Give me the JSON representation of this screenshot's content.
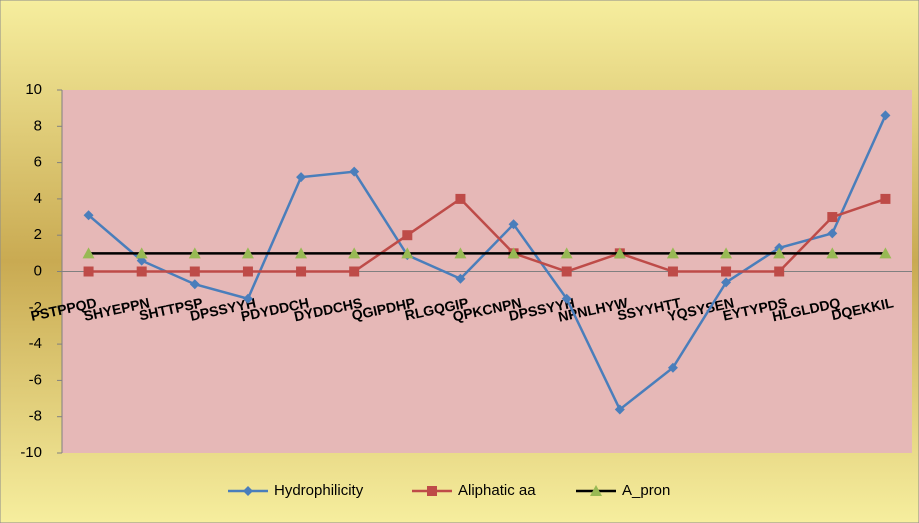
{
  "chart_data": {
    "type": "line",
    "categories": [
      "PSTPPQD",
      "SHYEPPN",
      "SHTTPSP",
      "DPSSYYH",
      "PDYDDCH",
      "DYDDCHS",
      "QGIPDHP",
      "RLGQGIP",
      "QPKCNPN",
      "DPSSYYH",
      "NPNLHYW",
      "SSYYHTT",
      "YQSYSEN",
      "EYTYPDS",
      "HLGLDDQ",
      "DQEKKIL"
    ],
    "series": [
      {
        "name": "Hydrophilicity",
        "color": "#4a7ebb",
        "marker": "diamond",
        "values": [
          3.1,
          0.6,
          -0.7,
          -1.5,
          5.2,
          5.5,
          0.9,
          -0.4,
          2.6,
          -1.5,
          -7.6,
          -5.3,
          -0.6,
          1.3,
          2.1,
          8.6
        ]
      },
      {
        "name": "Aliphatic aa",
        "color": "#be4b48",
        "marker": "square",
        "values": [
          0,
          0,
          0,
          0,
          0,
          0,
          2,
          4,
          1,
          0,
          1,
          0,
          0,
          0,
          3,
          4
        ]
      },
      {
        "name": "A_pron",
        "color": "#000000",
        "marker_color": "#98b954",
        "marker": "triangle",
        "values": [
          1,
          1,
          1,
          1,
          1,
          1,
          1,
          1,
          1,
          1,
          1,
          1,
          1,
          1,
          1,
          1
        ]
      }
    ],
    "ylim": [
      -10,
      10
    ],
    "yticks": [
      -10,
      -8,
      -6,
      -4,
      -2,
      0,
      2,
      4,
      6,
      8,
      10
    ],
    "legend": "bottom"
  }
}
